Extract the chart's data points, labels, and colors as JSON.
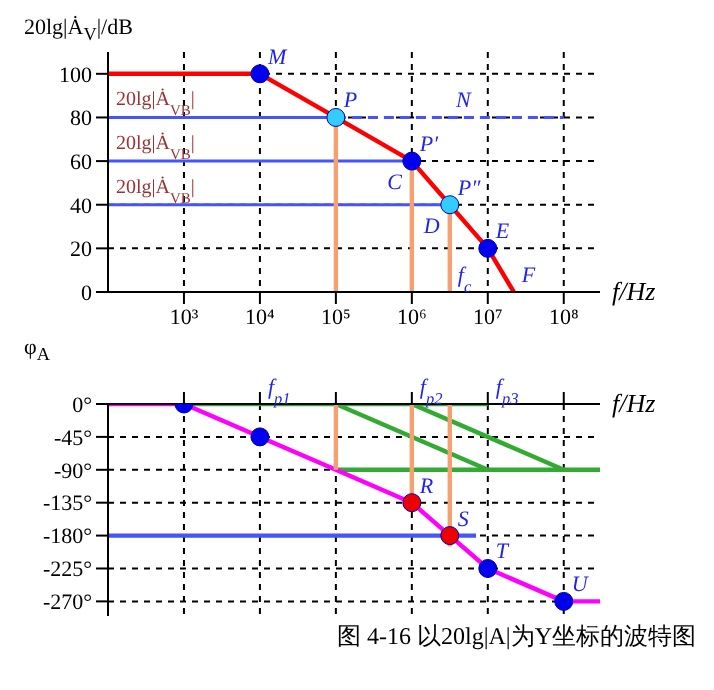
{
  "chart_data": [
    {
      "type": "line",
      "ylabel": "20lg|Ȧ$_{V}$|/dB",
      "xlabel": "f/Hz",
      "log": "x",
      "xlim": [
        100,
        300000000
      ],
      "xticks": [
        {
          "value": 1000,
          "label": "10³"
        },
        {
          "value": 10000,
          "label": "10⁴"
        },
        {
          "value": 100000,
          "label": "10⁵"
        },
        {
          "value": 1000000,
          "label": "10⁶"
        },
        {
          "value": 10000000,
          "label": "10⁷"
        },
        {
          "value": 100000000,
          "label": "10⁸"
        }
      ],
      "ylim": [
        0,
        110
      ],
      "yticks": [
        0,
        20,
        40,
        60,
        80,
        100
      ],
      "grid": true,
      "series": [
        {
          "color": "#ff0000",
          "x": [
            100,
            10000,
            100000,
            1000000,
            3160000,
            10000000,
            22000000
          ],
          "values": [
            100,
            100,
            80,
            60,
            40,
            20,
            0
          ]
        },
        {
          "name": "20lg|Ȧ$_{VB}$|",
          "color": "#4455ff",
          "x": [
            100,
            100000
          ],
          "values": [
            80,
            80
          ]
        },
        {
          "color": "#4455ff",
          "line_style": "dashed",
          "x": [
            100000,
            100000000
          ],
          "values": [
            80,
            80
          ]
        },
        {
          "name": "20lg|Ȧ$_{VB}$|",
          "color": "#4455ff",
          "x": [
            100,
            1000000
          ],
          "values": [
            60,
            60
          ]
        },
        {
          "name": "20lg|Ȧ$_{VB}$|",
          "color": "#4455ff",
          "x": [
            100,
            3160000
          ],
          "values": [
            40,
            40
          ]
        },
        {
          "color": "#f4a070",
          "x": [
            100000,
            100000
          ],
          "values": [
            80,
            0
          ]
        },
        {
          "color": "#f4a070",
          "x": [
            1000000,
            1000000
          ],
          "values": [
            60,
            0
          ]
        },
        {
          "color": "#f4a070",
          "x": [
            3160000,
            3160000
          ],
          "values": [
            40,
            0
          ]
        },
        {
          "type": "scatter",
          "marker": "circle",
          "x": [
            10000,
            100000,
            1000000,
            3160000,
            10000000
          ],
          "values": [
            100,
            80,
            60,
            40,
            20
          ],
          "colors": [
            "#0000ee",
            "#33ccff",
            "#0000ee",
            "#33ccff",
            "#0000ee"
          ]
        }
      ],
      "annotations": [
        {
          "text": "M",
          "x": 10000,
          "y": 100
        },
        {
          "text": "P",
          "x": 100000,
          "y": 80
        },
        {
          "text": "N",
          "x": 3000000,
          "y": 80
        },
        {
          "text": "P′",
          "x": 1000000,
          "y": 60
        },
        {
          "text": "C",
          "x": 1000000,
          "y": 60
        },
        {
          "text": "P″",
          "x": 3160000,
          "y": 40
        },
        {
          "text": "D",
          "x": 3160000,
          "y": 40
        },
        {
          "text": "E",
          "x": 10000000,
          "y": 20
        },
        {
          "text": "F",
          "x": 22000000,
          "y": 0
        },
        {
          "text": "f$_{c}$",
          "x": 3160000,
          "y": 0
        }
      ]
    },
    {
      "type": "line",
      "ylabel": "φ$_{A}$",
      "xlabel": "f/Hz",
      "log": "x",
      "xlim": [
        100,
        300000000
      ],
      "xticks": [
        1000,
        10000,
        100000,
        1000000,
        10000000,
        100000000
      ],
      "tick_labels": "y",
      "ylim": [
        -290,
        0
      ],
      "yticks": [
        {
          "value": 0,
          "label": "0°"
        },
        {
          "value": -45,
          "label": "-45°"
        },
        {
          "value": -90,
          "label": "-90°"
        },
        {
          "value": -135,
          "label": "-135°"
        },
        {
          "value": -180,
          "label": "-180°"
        },
        {
          "value": -225,
          "label": "-225°"
        },
        {
          "value": -270,
          "label": "-270°"
        }
      ],
      "grid": true,
      "series": [
        {
          "color": "#33aa33",
          "x": [
            1000,
            10000000
          ],
          "values": [
            0,
            0
          ]
        },
        {
          "color": "#33aa33",
          "x": [
            100000,
            10000000
          ],
          "values": [
            0,
            -90
          ]
        },
        {
          "color": "#33aa33",
          "x": [
            1000000,
            100000000
          ],
          "values": [
            0,
            -90
          ]
        },
        {
          "color": "#33aa33",
          "x": [
            100000,
            300000000
          ],
          "values": [
            -90,
            -90
          ]
        },
        {
          "color": "#4455ff",
          "x": [
            100,
            7000000
          ],
          "values": [
            -180,
            -180
          ]
        },
        {
          "color": "#ff00ff",
          "x": [
            100,
            1000,
            10000,
            100000,
            1000000,
            3160000,
            10000000,
            100000000,
            300000000
          ],
          "values": [
            0,
            0,
            -45,
            -90,
            -135,
            -180,
            -225,
            -270,
            -270
          ]
        },
        {
          "color": "#f4a070",
          "x": [
            100000,
            100000
          ],
          "values": [
            0,
            -90
          ]
        },
        {
          "color": "#f4a070",
          "x": [
            1000000,
            1000000
          ],
          "values": [
            0,
            -135
          ]
        },
        {
          "color": "#f4a070",
          "x": [
            3160000,
            3160000
          ],
          "values": [
            0,
            -195
          ]
        },
        {
          "type": "scatter",
          "marker": "circle",
          "x": [
            1000,
            10000,
            1000000,
            3160000,
            10000000,
            100000000
          ],
          "values": [
            0,
            -45,
            -135,
            -180,
            -225,
            -270
          ],
          "colors": [
            "#0000ee",
            "#0000ee",
            "#ee0000",
            "#ee0000",
            "#0000ee",
            "#0000ee"
          ]
        }
      ],
      "annotations": [
        {
          "text": "f$_{p1}$",
          "x": 10000,
          "y": 0
        },
        {
          "text": "f$_{p2}$",
          "x": 1000000,
          "y": 0
        },
        {
          "text": "f$_{p3}$",
          "x": 10000000,
          "y": 0
        },
        {
          "text": "R",
          "x": 1000000,
          "y": -135
        },
        {
          "text": "S",
          "x": 3160000,
          "y": -180
        },
        {
          "text": "T",
          "x": 10000000,
          "y": -225
        },
        {
          "text": "U",
          "x": 100000000,
          "y": -270
        },
        "图 4-16  以20lg|A|为Y坐标的波特图"
      ]
    }
  ]
}
